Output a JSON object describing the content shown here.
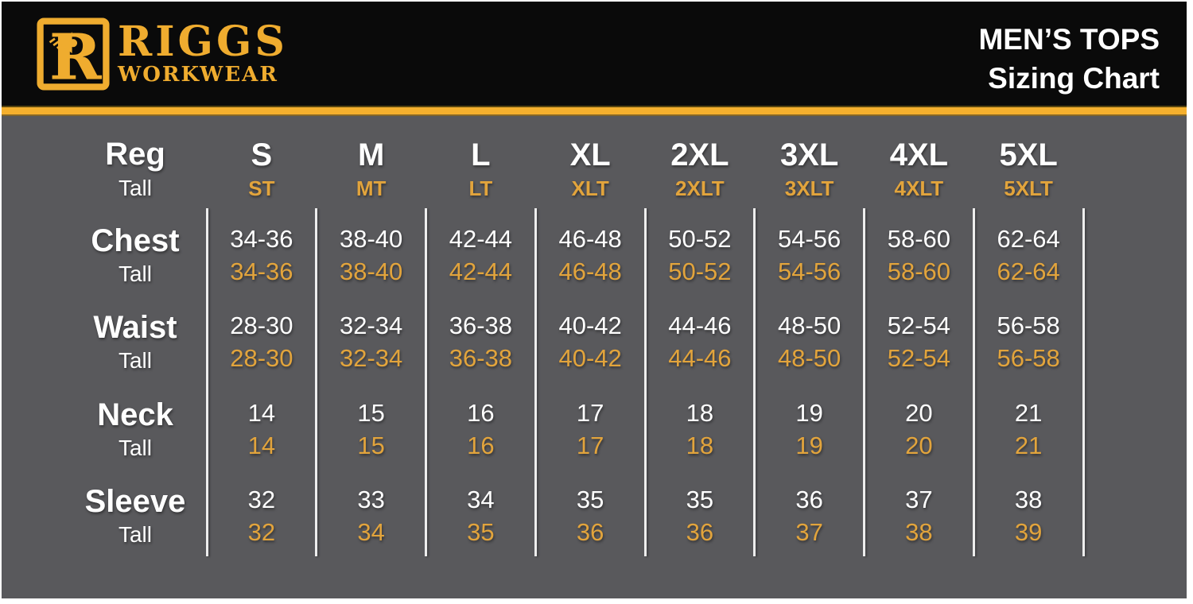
{
  "header": {
    "brand_line1": "RIGGS",
    "brand_line2": "WORKWEAR",
    "logo_letter": "R",
    "title_line1": "MEN’S TOPS",
    "title_line2": "Sizing Chart"
  },
  "colors": {
    "gold_brand": "#EFAC2F",
    "gold_table": "#E2A43C",
    "stripe": "#F5B02E",
    "bg_gray": "#59595C",
    "header_bg": "#0A0A0A",
    "divider": "#EDEDED",
    "white_text": "#FFFFFF"
  },
  "chart_data": {
    "type": "table",
    "title": "MEN’S TOPS Sizing Chart",
    "row_header": {
      "regular": "Reg",
      "tall": "Tall"
    },
    "column_headers": {
      "regular": [
        "S",
        "M",
        "L",
        "XL",
        "2XL",
        "3XL",
        "4XL",
        "5XL"
      ],
      "tall": [
        "ST",
        "MT",
        "LT",
        "XLT",
        "2XLT",
        "3XLT",
        "4XLT",
        "5XLT"
      ]
    },
    "rows": [
      {
        "measurement": "Chest",
        "regular": [
          "34-36",
          "38-40",
          "42-44",
          "46-48",
          "50-52",
          "54-56",
          "58-60",
          "62-64"
        ],
        "tall": [
          "34-36",
          "38-40",
          "42-44",
          "46-48",
          "50-52",
          "54-56",
          "58-60",
          "62-64"
        ]
      },
      {
        "measurement": "Waist",
        "regular": [
          "28-30",
          "32-34",
          "36-38",
          "40-42",
          "44-46",
          "48-50",
          "52-54",
          "56-58"
        ],
        "tall": [
          "28-30",
          "32-34",
          "36-38",
          "40-42",
          "44-46",
          "48-50",
          "52-54",
          "56-58"
        ]
      },
      {
        "measurement": "Neck",
        "regular": [
          "14",
          "15",
          "16",
          "17",
          "18",
          "19",
          "20",
          "21"
        ],
        "tall": [
          "14",
          "15",
          "16",
          "17",
          "18",
          "19",
          "20",
          "21"
        ]
      },
      {
        "measurement": "Sleeve",
        "regular": [
          "32",
          "33",
          "34",
          "35",
          "35",
          "36",
          "37",
          "38"
        ],
        "tall": [
          "32",
          "34",
          "35",
          "36",
          "36",
          "37",
          "38",
          "39"
        ]
      }
    ]
  }
}
